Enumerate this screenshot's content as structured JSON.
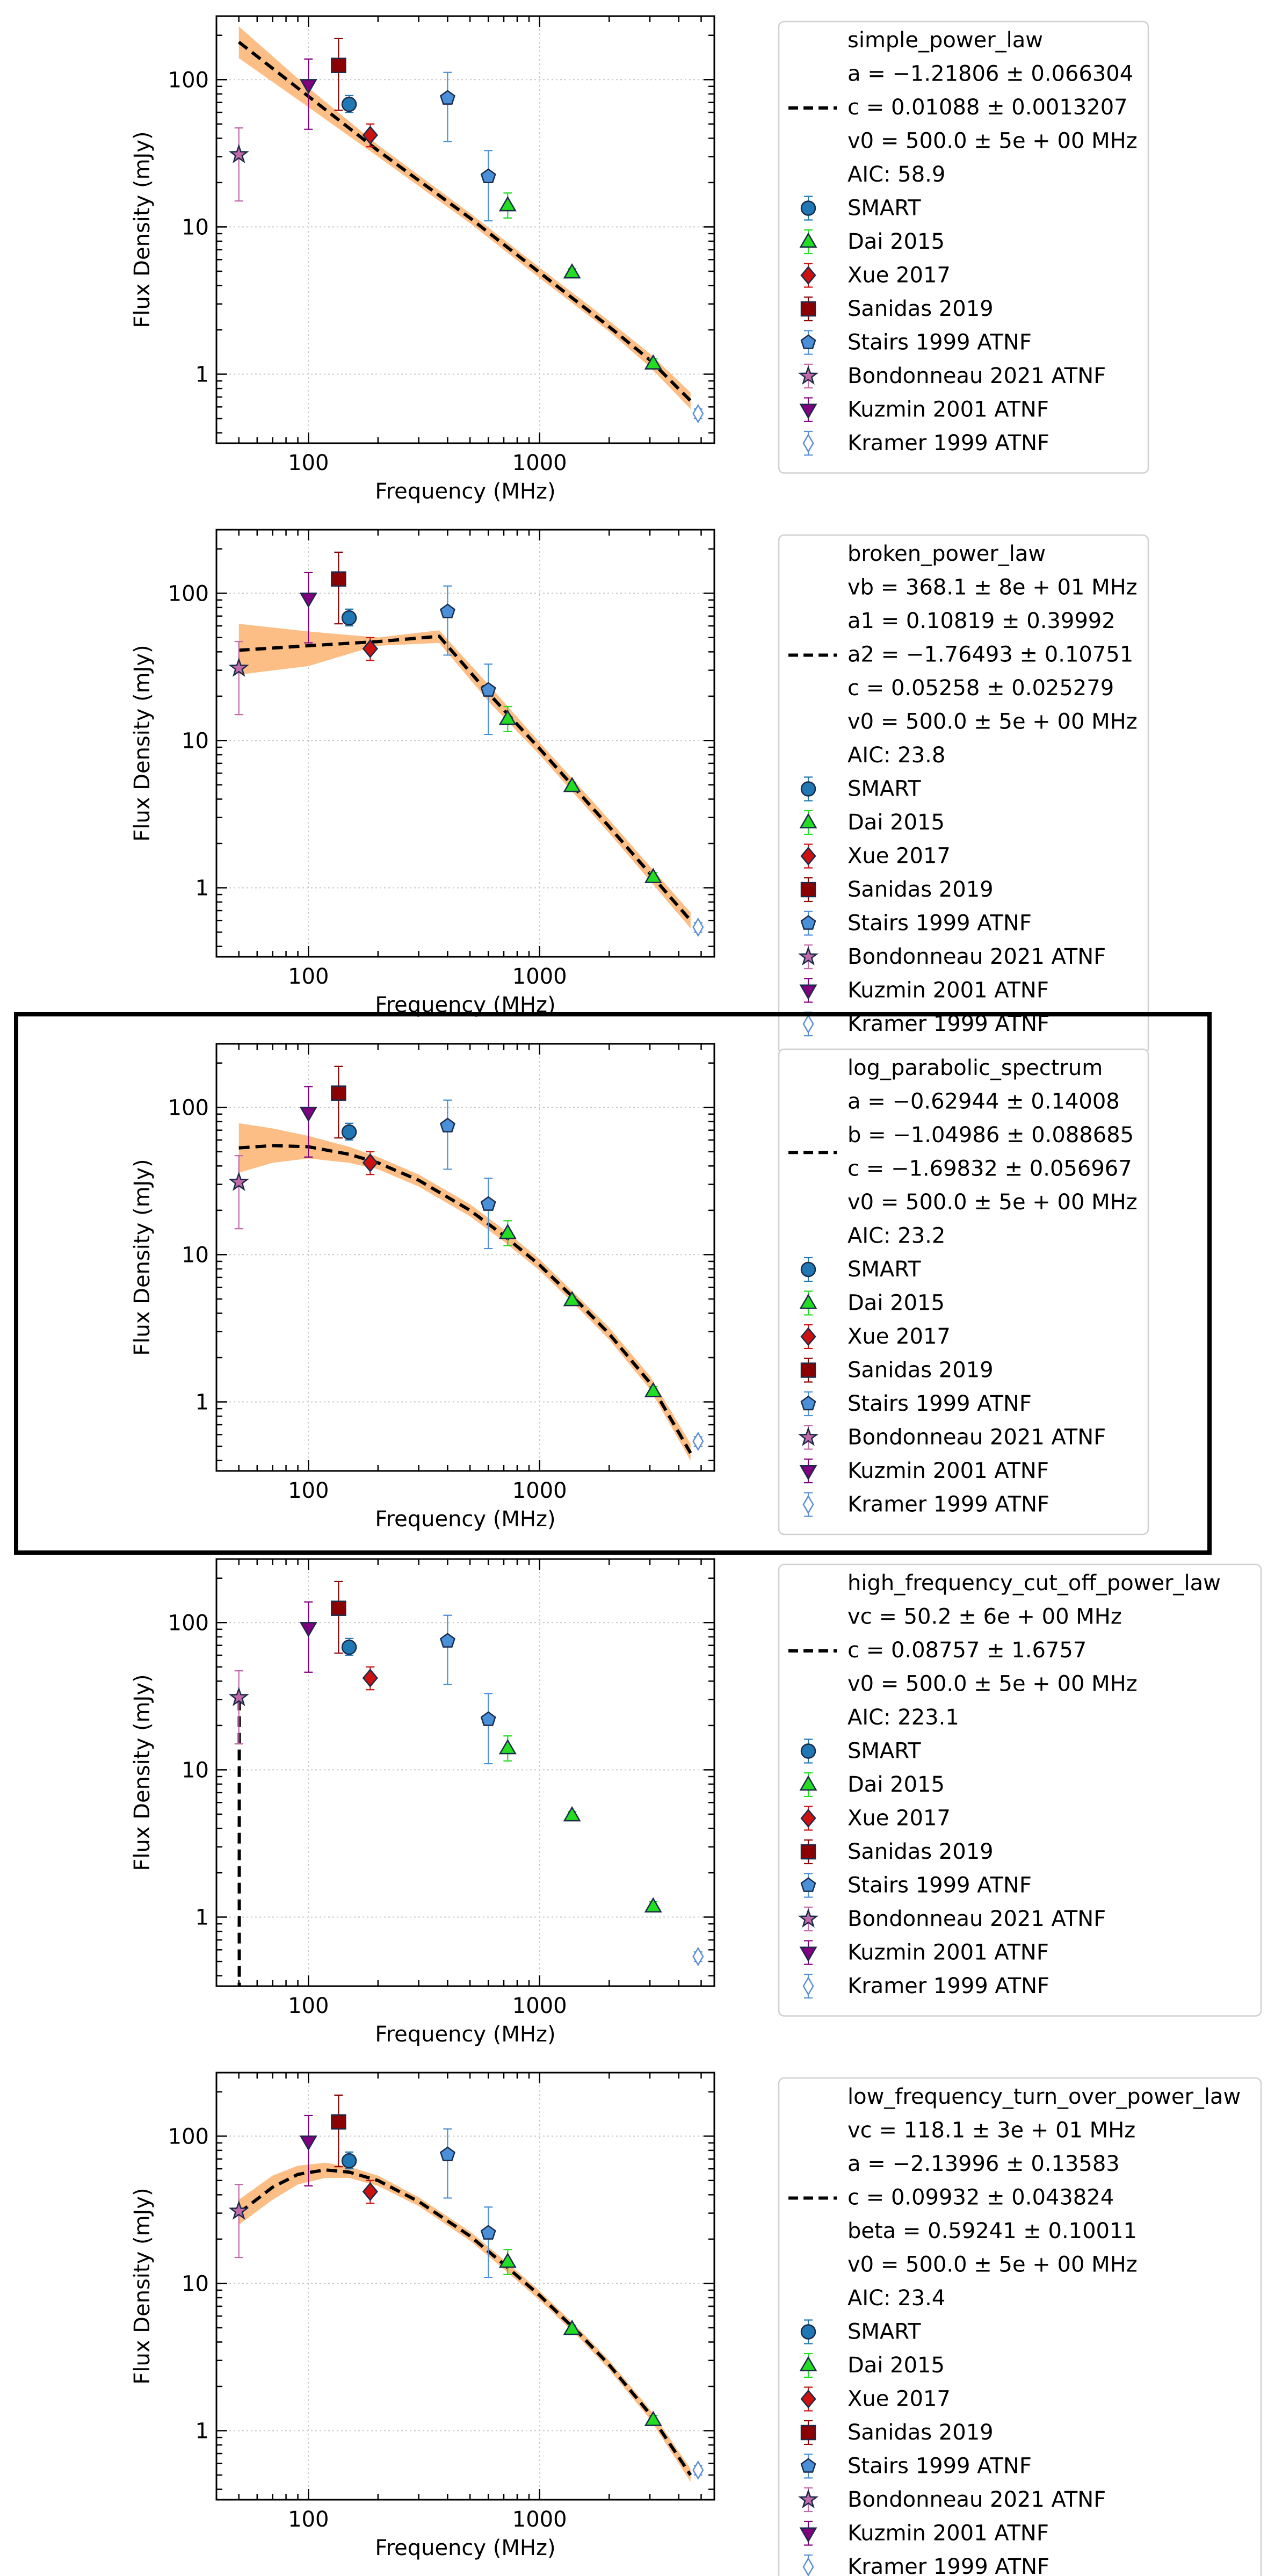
{
  "colors": {
    "band": "#fdbe86",
    "fit_line": "#000000",
    "grid": "#c8c8c8",
    "SMART": "#1f77b4",
    "Dai 2015": "#22dd22",
    "Xue 2017": "#cc1111",
    "Sanidas 2019": "#8b0000",
    "Stairs 1999 ATNF": "#4a90d9",
    "Bondonneau 2021 ATNF": "#c36aa8",
    "Kuzmin 2001 ATNF": "#800080",
    "Kramer 1999 ATNF": "#5a8fd6"
  },
  "chart_data": [
    {
      "type": "scatter",
      "model": "simple_power_law",
      "xlabel": "Frequency (MHz)",
      "ylabel": "Flux Density (mJy)",
      "xscale": "log",
      "yscale": "log",
      "xlim": [
        40,
        5700
      ],
      "ylim": [
        0.34,
        270
      ],
      "xticks": [
        {
          "value": 100,
          "label": "100"
        },
        {
          "value": 1000,
          "label": "1000"
        }
      ],
      "yticks": [
        {
          "value": 1,
          "label": "1"
        },
        {
          "value": 10,
          "label": "10"
        },
        {
          "value": 100,
          "label": "100"
        }
      ],
      "grid": true,
      "legend_position": "outside-right",
      "highlighted": false,
      "fit_line": [
        [
          50,
          180
        ],
        [
          100,
          77
        ],
        [
          200,
          33
        ],
        [
          500,
          11.5
        ],
        [
          1000,
          4.9
        ],
        [
          2000,
          2.1
        ],
        [
          3000,
          1.25
        ],
        [
          4500,
          0.66
        ]
      ],
      "band_upper": [
        [
          50,
          230
        ],
        [
          100,
          88
        ],
        [
          200,
          36
        ],
        [
          500,
          12.4
        ],
        [
          1000,
          5.3
        ],
        [
          2000,
          2.3
        ],
        [
          3000,
          1.38
        ],
        [
          4500,
          0.75
        ]
      ],
      "band_lower": [
        [
          50,
          140
        ],
        [
          100,
          65
        ],
        [
          200,
          30
        ],
        [
          500,
          10.6
        ],
        [
          1000,
          4.5
        ],
        [
          2000,
          1.95
        ],
        [
          3000,
          1.12
        ],
        [
          4500,
          0.58
        ]
      ],
      "legend_lines": [
        "simple_power_law",
        "a = −1.21806 ± 0.066304",
        "c = 0.01088 ± 0.0013207",
        "v0 = 500.0 ± 5e + 00 MHz",
        "AIC: 58.9"
      ]
    },
    {
      "type": "scatter",
      "model": "broken_power_law",
      "xlabel": "Frequency (MHz)",
      "ylabel": "Flux Density (mJy)",
      "xscale": "log",
      "yscale": "log",
      "xlim": [
        40,
        5700
      ],
      "ylim": [
        0.34,
        270
      ],
      "xticks": [
        {
          "value": 100,
          "label": "100"
        },
        {
          "value": 1000,
          "label": "1000"
        }
      ],
      "yticks": [
        {
          "value": 1,
          "label": "1"
        },
        {
          "value": 10,
          "label": "10"
        },
        {
          "value": 100,
          "label": "100"
        }
      ],
      "grid": true,
      "legend_position": "outside-right",
      "highlighted": false,
      "fit_line": [
        [
          50,
          41
        ],
        [
          100,
          44
        ],
        [
          200,
          47
        ],
        [
          368,
          51
        ],
        [
          600,
          21
        ],
        [
          1000,
          8.8
        ],
        [
          2000,
          2.6
        ],
        [
          3000,
          1.25
        ],
        [
          4500,
          0.6
        ]
      ],
      "band_upper": [
        [
          50,
          62
        ],
        [
          100,
          55
        ],
        [
          200,
          50
        ],
        [
          368,
          56
        ],
        [
          600,
          24
        ],
        [
          1000,
          9.7
        ],
        [
          2000,
          2.9
        ],
        [
          3000,
          1.4
        ],
        [
          4500,
          0.68
        ]
      ],
      "band_lower": [
        [
          50,
          28
        ],
        [
          100,
          32
        ],
        [
          160,
          40
        ],
        [
          200,
          44
        ],
        [
          368,
          46
        ],
        [
          600,
          18.5
        ],
        [
          1000,
          8.0
        ],
        [
          2000,
          2.35
        ],
        [
          3000,
          1.12
        ],
        [
          4500,
          0.53
        ]
      ],
      "legend_lines": [
        "broken_power_law",
        "vb = 368.1 ± 8e + 01 MHz",
        "a1 = 0.10819 ± 0.39992",
        "a2 = −1.76493 ± 0.10751",
        "c = 0.05258 ± 0.025279",
        "v0 = 500.0 ± 5e + 00 MHz",
        "AIC: 23.8"
      ]
    },
    {
      "type": "scatter",
      "model": "log_parabolic_spectrum",
      "xlabel": "Frequency (MHz)",
      "ylabel": "Flux Density (mJy)",
      "xscale": "log",
      "yscale": "log",
      "xlim": [
        40,
        5700
      ],
      "ylim": [
        0.34,
        270
      ],
      "xticks": [
        {
          "value": 100,
          "label": "100"
        },
        {
          "value": 1000,
          "label": "1000"
        }
      ],
      "yticks": [
        {
          "value": 1,
          "label": "1"
        },
        {
          "value": 10,
          "label": "10"
        },
        {
          "value": 100,
          "label": "100"
        }
      ],
      "grid": true,
      "legend_position": "outside-right",
      "highlighted": true,
      "fit_line": [
        [
          50,
          53
        ],
        [
          70,
          55
        ],
        [
          100,
          54
        ],
        [
          150,
          48
        ],
        [
          200,
          42
        ],
        [
          300,
          32
        ],
        [
          500,
          20
        ],
        [
          700,
          13.5
        ],
        [
          1000,
          8.5
        ],
        [
          1500,
          4.6
        ],
        [
          2000,
          2.9
        ],
        [
          3000,
          1.35
        ],
        [
          4500,
          0.45
        ]
      ],
      "band_upper": [
        [
          50,
          78
        ],
        [
          70,
          72
        ],
        [
          100,
          64
        ],
        [
          150,
          54
        ],
        [
          200,
          46
        ],
        [
          300,
          35
        ],
        [
          500,
          22
        ],
        [
          700,
          14.8
        ],
        [
          1000,
          9.3
        ],
        [
          1500,
          5.0
        ],
        [
          2000,
          3.2
        ],
        [
          3000,
          1.5
        ],
        [
          4500,
          0.52
        ]
      ],
      "band_lower": [
        [
          50,
          36
        ],
        [
          70,
          42
        ],
        [
          100,
          45
        ],
        [
          150,
          42
        ],
        [
          200,
          38
        ],
        [
          300,
          29
        ],
        [
          500,
          18.2
        ],
        [
          700,
          12.3
        ],
        [
          1000,
          7.8
        ],
        [
          1500,
          4.2
        ],
        [
          2000,
          2.65
        ],
        [
          3000,
          1.22
        ],
        [
          4500,
          0.4
        ]
      ],
      "legend_lines": [
        "log_parabolic_spectrum",
        "a = −0.62944 ± 0.14008",
        "b = −1.04986 ± 0.088685",
        "c = −1.69832 ± 0.056967",
        "v0 = 500.0 ± 5e + 00 MHz",
        "AIC: 23.2"
      ]
    },
    {
      "type": "scatter",
      "model": "high_frequency_cut_off_power_law",
      "xlabel": "Frequency (MHz)",
      "ylabel": "Flux Density (mJy)",
      "xscale": "log",
      "yscale": "log",
      "xlim": [
        40,
        5700
      ],
      "ylim": [
        0.34,
        270
      ],
      "xticks": [
        {
          "value": 100,
          "label": "100"
        },
        {
          "value": 1000,
          "label": "1000"
        }
      ],
      "yticks": [
        {
          "value": 1,
          "label": "1"
        },
        {
          "value": 10,
          "label": "10"
        },
        {
          "value": 100,
          "label": "100"
        }
      ],
      "grid": true,
      "legend_position": "outside-right",
      "highlighted": false,
      "fit_line": [
        [
          50.2,
          30
        ],
        [
          50.2,
          0.34
        ]
      ],
      "band_upper": [],
      "band_lower": [],
      "legend_lines": [
        "high_frequency_cut_off_power_law",
        "vc = 50.2 ± 6e + 00 MHz",
        "c = 0.08757 ± 1.6757",
        "v0 = 500.0 ± 5e + 00 MHz",
        "AIC: 223.1"
      ]
    },
    {
      "type": "scatter",
      "model": "low_frequency_turn_over_power_law",
      "xlabel": "Frequency (MHz)",
      "ylabel": "Flux Density (mJy)",
      "xscale": "log",
      "yscale": "log",
      "xlim": [
        40,
        5700
      ],
      "ylim": [
        0.34,
        270
      ],
      "xticks": [
        {
          "value": 100,
          "label": "100"
        },
        {
          "value": 1000,
          "label": "1000"
        }
      ],
      "yticks": [
        {
          "value": 1,
          "label": "1"
        },
        {
          "value": 10,
          "label": "10"
        },
        {
          "value": 100,
          "label": "100"
        }
      ],
      "grid": true,
      "legend_position": "outside-right",
      "highlighted": false,
      "fit_line": [
        [
          50,
          30
        ],
        [
          70,
          45
        ],
        [
          90,
          55
        ],
        [
          118,
          59
        ],
        [
          150,
          57
        ],
        [
          200,
          50
        ],
        [
          300,
          36
        ],
        [
          500,
          21
        ],
        [
          700,
          13.5
        ],
        [
          1000,
          8.3
        ],
        [
          1500,
          4.5
        ],
        [
          2000,
          2.8
        ],
        [
          3000,
          1.3
        ],
        [
          4500,
          0.5
        ]
      ],
      "band_upper": [
        [
          50,
          37
        ],
        [
          70,
          54
        ],
        [
          90,
          63
        ],
        [
          118,
          66
        ],
        [
          150,
          62
        ],
        [
          200,
          54
        ],
        [
          300,
          38.5
        ],
        [
          500,
          22.5
        ],
        [
          700,
          14.5
        ],
        [
          1000,
          8.9
        ],
        [
          1500,
          4.8
        ],
        [
          2000,
          3.0
        ],
        [
          3000,
          1.4
        ],
        [
          4500,
          0.55
        ]
      ],
      "band_lower": [
        [
          50,
          25
        ],
        [
          70,
          37
        ],
        [
          90,
          47
        ],
        [
          118,
          52
        ],
        [
          150,
          52
        ],
        [
          200,
          46
        ],
        [
          300,
          33.5
        ],
        [
          500,
          19.5
        ],
        [
          700,
          12.5
        ],
        [
          1000,
          7.7
        ],
        [
          1500,
          4.2
        ],
        [
          2000,
          2.6
        ],
        [
          3000,
          1.2
        ],
        [
          4500,
          0.45
        ]
      ],
      "legend_lines": [
        "low_frequency_turn_over_power_law",
        "vc = 118.1 ± 3e + 01 MHz",
        "a = −2.13996 ± 0.13583",
        "c = 0.09932 ± 0.043824",
        "beta = 0.59241 ± 0.10011",
        "v0 = 500.0 ± 5e + 00 MHz",
        "AIC: 23.4"
      ]
    }
  ],
  "observations": [
    {
      "name": "SMART",
      "marker": "circle",
      "points": [
        {
          "x": 150,
          "y": 68,
          "ylo": 60,
          "yhi": 78
        }
      ]
    },
    {
      "name": "Dai 2015",
      "marker": "triangle-up",
      "points": [
        {
          "x": 728,
          "y": 14,
          "ylo": 11.5,
          "yhi": 17
        },
        {
          "x": 1382,
          "y": 4.9,
          "ylo": 4.6,
          "yhi": 5.2
        },
        {
          "x": 3100,
          "y": 1.18,
          "ylo": 1.1,
          "yhi": 1.27
        }
      ]
    },
    {
      "name": "Xue 2017",
      "marker": "diamond",
      "points": [
        {
          "x": 185,
          "y": 42,
          "ylo": 35,
          "yhi": 50
        }
      ]
    },
    {
      "name": "Sanidas 2019",
      "marker": "square",
      "points": [
        {
          "x": 135,
          "y": 125,
          "ylo": 62,
          "yhi": 190
        }
      ]
    },
    {
      "name": "Stairs 1999 ATNF",
      "marker": "pentagon",
      "points": [
        {
          "x": 400,
          "y": 75,
          "ylo": 38,
          "yhi": 112
        },
        {
          "x": 600,
          "y": 22,
          "ylo": 11,
          "yhi": 33
        }
      ]
    },
    {
      "name": "Bondonneau 2021 ATNF",
      "marker": "star",
      "points": [
        {
          "x": 50,
          "y": 31,
          "ylo": 15,
          "yhi": 47
        }
      ]
    },
    {
      "name": "Kuzmin 2001 ATNF",
      "marker": "triangle-down",
      "points": [
        {
          "x": 100,
          "y": 92,
          "ylo": 46,
          "yhi": 138
        }
      ]
    },
    {
      "name": "Kramer 1999 ATNF",
      "marker": "thin-diamond",
      "points": [
        {
          "x": 4850,
          "y": 0.54,
          "ylo": 0.5,
          "yhi": 0.58
        }
      ]
    }
  ]
}
